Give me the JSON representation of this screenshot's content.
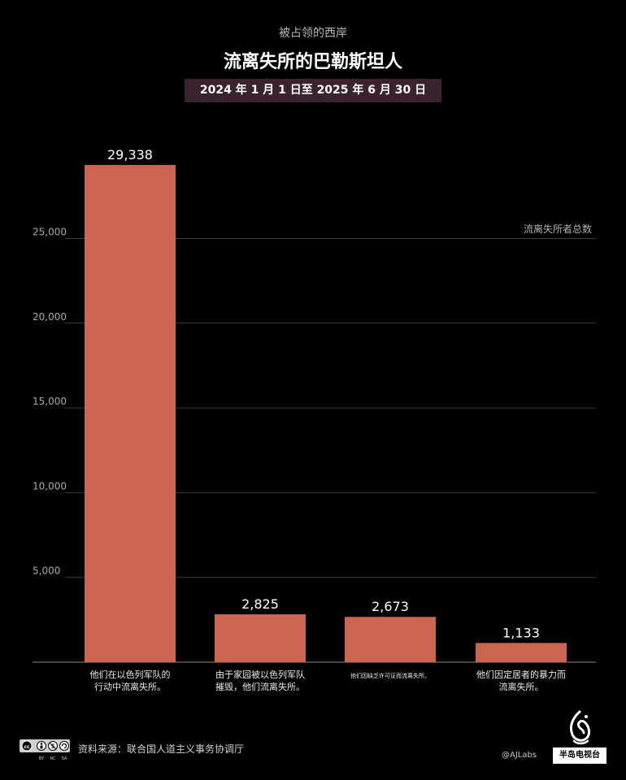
{
  "header": {
    "supertitle": "被占领的西岸",
    "title": "流离失所的巴勒斯坦人",
    "date_range": "2024 年 1 月 1 日至 2025 年 6 月 30 日"
  },
  "chart_data": {
    "type": "bar",
    "categories": [
      [
        "他们在以色列军队的",
        "行动中流离失所。"
      ],
      [
        "由于家园被以色列军队",
        "摧毁，他们流离失所。"
      ],
      [
        "他们因缺乏许可证而流离失所。"
      ],
      [
        "他们因定居者的暴力而",
        "流离失所。"
      ]
    ],
    "values": [
      29338,
      2825,
      2673,
      1133
    ],
    "value_labels": [
      "29,338",
      "2,825",
      "2,673",
      "1,133"
    ],
    "series": [
      {
        "name": "流离失所者总数",
        "values": [
          29338,
          2825,
          2673,
          1133
        ]
      }
    ],
    "ylim": [
      0,
      30000
    ],
    "yticks": [
      5000,
      10000,
      15000,
      20000,
      25000
    ],
    "ytick_labels": [
      "5,000",
      "10,000",
      "15,000",
      "20,000",
      "25,000"
    ],
    "legend_label": "流离失所者总数",
    "legend_position": "top-right",
    "grid": true,
    "bar_color": "#cb6450"
  },
  "footer": {
    "source": "资料来源：联合国人道主义事务协调厅",
    "credit": "@AJLabs",
    "brand": "半岛电视台",
    "license": [
      "BY",
      "NC",
      "SA"
    ]
  }
}
